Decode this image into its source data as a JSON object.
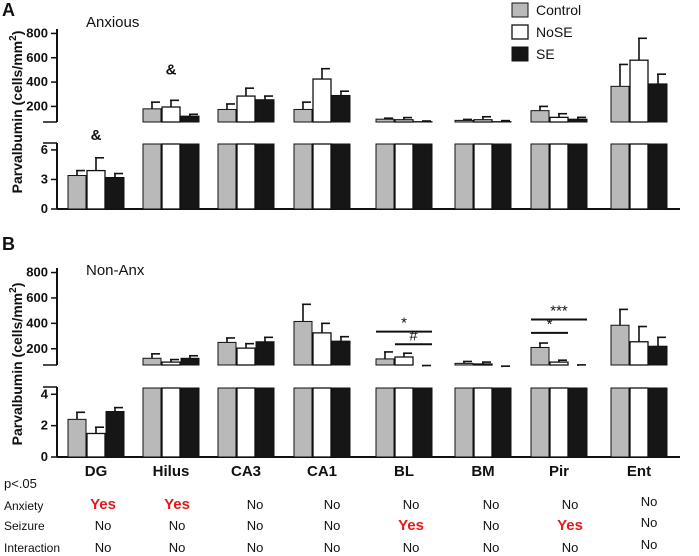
{
  "chart_data": {
    "type": "bar",
    "categories": [
      "DG",
      "Hilus",
      "CA3",
      "CA1",
      "BL",
      "BM",
      "Pir",
      "Ent"
    ],
    "legend": [
      {
        "name": "Control",
        "color": "#b9b9b9"
      },
      {
        "name": "NoSE",
        "color": "#ffffff"
      },
      {
        "name": "SE",
        "color": "#161616"
      }
    ],
    "ylabel": "Parvalbumin (cells/mm²)",
    "ylabel_parts": [
      "Parvalbumin (cells/mm",
      "2",
      ")"
    ],
    "panels": [
      {
        "letter": "A",
        "title": "Anxious",
        "lower_axis": {
          "ticks": [
            0,
            3,
            6
          ],
          "range": [
            0,
            6.6
          ]
        },
        "upper_axis": {
          "ticks": [
            200,
            400,
            600,
            800
          ],
          "range": [
            0,
            820
          ]
        },
        "series": [
          {
            "name": "Control",
            "values": [
              3.4,
              180,
              175,
              175,
              95,
              85,
              165,
              365
            ],
            "errors": [
              0.5,
              55,
              45,
              60,
              8,
              8,
              35,
              180
            ]
          },
          {
            "name": "NoSE",
            "values": [
              3.9,
              195,
              285,
              425,
              90,
              90,
              110,
              580
            ],
            "errors": [
              1.3,
              55,
              65,
              85,
              18,
              25,
              30,
              180
            ]
          },
          {
            "name": "SE",
            "values": [
              3.2,
              120,
              255,
              290,
              75,
              75,
              95,
              385
            ],
            "errors": [
              0.4,
              15,
              30,
              35,
              5,
              8,
              15,
              80
            ]
          }
        ],
        "annotations": [
          {
            "category": "DG",
            "text": "&"
          },
          {
            "category": "Hilus",
            "text": "&"
          }
        ],
        "significance": []
      },
      {
        "letter": "B",
        "title": "Non-Anx",
        "lower_axis": {
          "ticks": [
            0,
            2,
            4
          ],
          "range": [
            0,
            4.4
          ]
        },
        "upper_axis": {
          "ticks": [
            200,
            400,
            600,
            800
          ],
          "range": [
            0,
            820
          ]
        },
        "series": [
          {
            "name": "Control",
            "values": [
              2.4,
              125,
              250,
              415,
              120,
              85,
              210,
              385
            ],
            "errors": [
              0.45,
              35,
              35,
              135,
              55,
              15,
              35,
              125
            ]
          },
          {
            "name": "NoSE",
            "values": [
              1.5,
              95,
              205,
              325,
              135,
              80,
              95,
              255
            ],
            "errors": [
              0.4,
              20,
              35,
              75,
              30,
              15,
              15,
              120
            ]
          },
          {
            "name": "SE",
            "values": [
              2.9,
              125,
              255,
              260,
              60,
              55,
              65,
              220
            ],
            "errors": [
              0.25,
              20,
              35,
              35,
              8,
              8,
              8,
              70
            ]
          }
        ],
        "annotations": [],
        "significance": [
          {
            "category": "BL",
            "from": "Control",
            "to": "SE",
            "level": 335,
            "label": "*"
          },
          {
            "category": "BL",
            "from": "NoSE",
            "to": "SE",
            "level": 235,
            "label": "#"
          },
          {
            "category": "Pir",
            "from": "Control",
            "to": "SE",
            "level": 430,
            "label": "***"
          },
          {
            "category": "Pir",
            "from": "Control",
            "to": "NoSE",
            "level": 325,
            "label": "*"
          }
        ]
      }
    ]
  },
  "stats_table": {
    "header": "p<.05",
    "rows": [
      {
        "label": "Anxiety",
        "values": [
          "Yes",
          "Yes",
          "No",
          "No",
          "No",
          "No",
          "No",
          "No"
        ]
      },
      {
        "label": "Seizure",
        "values": [
          "No",
          "No",
          "No",
          "No",
          "Yes",
          "No",
          "Yes",
          "No"
        ]
      },
      {
        "label": "Interaction",
        "values": [
          "No",
          "No",
          "No",
          "No",
          "No",
          "No",
          "No",
          "No"
        ]
      }
    ]
  },
  "colors": {
    "highlight": "#e01b1b"
  }
}
